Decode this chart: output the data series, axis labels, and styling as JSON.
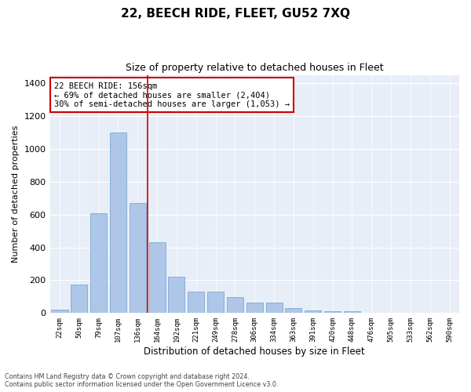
{
  "title": "22, BEECH RIDE, FLEET, GU52 7XQ",
  "subtitle": "Size of property relative to detached houses in Fleet",
  "xlabel": "Distribution of detached houses by size in Fleet",
  "ylabel": "Number of detached properties",
  "categories": [
    "22sqm",
    "50sqm",
    "79sqm",
    "107sqm",
    "136sqm",
    "164sqm",
    "192sqm",
    "221sqm",
    "249sqm",
    "278sqm",
    "306sqm",
    "334sqm",
    "363sqm",
    "391sqm",
    "420sqm",
    "448sqm",
    "476sqm",
    "505sqm",
    "533sqm",
    "562sqm",
    "590sqm"
  ],
  "values": [
    20,
    175,
    610,
    1100,
    670,
    430,
    220,
    130,
    130,
    95,
    65,
    65,
    30,
    18,
    10,
    10,
    0,
    0,
    0,
    0,
    0
  ],
  "bar_color": "#aec6e8",
  "bar_edge_color": "#6b9fcf",
  "vline_color": "#cc0000",
  "annotation_text": "22 BEECH RIDE: 156sqm\n← 69% of detached houses are smaller (2,404)\n30% of semi-detached houses are larger (1,053) →",
  "annotation_box_color": "#ffffff",
  "annotation_box_edge_color": "#cc0000",
  "ylim": [
    0,
    1450
  ],
  "yticks": [
    0,
    200,
    400,
    600,
    800,
    1000,
    1200,
    1400
  ],
  "background_color": "#e8eef7",
  "grid_color": "#ffffff",
  "footer_line1": "Contains HM Land Registry data © Crown copyright and database right 2024.",
  "footer_line2": "Contains public sector information licensed under the Open Government Licence v3.0."
}
